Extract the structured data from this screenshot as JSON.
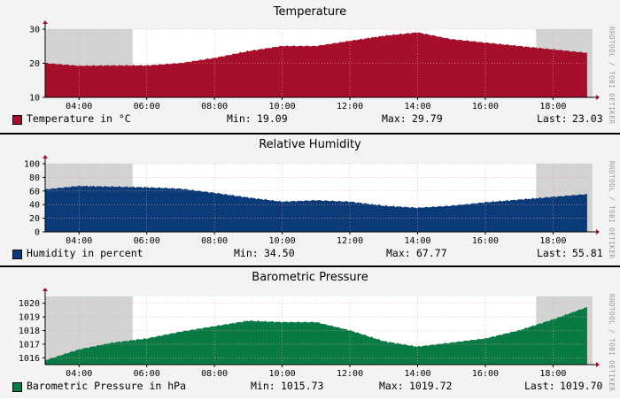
{
  "watermark": "RRDTOOL / TOBI OETIKER",
  "chart_data": [
    {
      "type": "area",
      "title": "Temperature",
      "x_ticks": [
        "04:00",
        "06:00",
        "08:00",
        "10:00",
        "12:00",
        "14:00",
        "16:00",
        "18:00"
      ],
      "x_range": [
        "03:00",
        "19:10"
      ],
      "ylim": [
        10,
        30
      ],
      "y_ticks": [
        10,
        20,
        30
      ],
      "grid": true,
      "shaded_periods": [
        [
          "03:00",
          "05:35"
        ],
        [
          "17:30",
          "19:10"
        ]
      ],
      "x": [
        "03:00",
        "04:00",
        "05:00",
        "06:00",
        "07:00",
        "08:00",
        "09:00",
        "10:00",
        "11:00",
        "12:00",
        "13:00",
        "14:00",
        "15:00",
        "16:00",
        "17:00",
        "18:00",
        "19:00"
      ],
      "values": [
        20.0,
        19.2,
        19.3,
        19.3,
        20.0,
        21.5,
        23.5,
        25.0,
        25.0,
        26.5,
        28.0,
        29.0,
        27.0,
        26.0,
        25.0,
        24.0,
        23.0
      ],
      "series_name": "Temperature in °C",
      "color": "#a50f2c",
      "min_label": "Min:",
      "min": "19.09",
      "max_label": "Max:",
      "max": "29.79",
      "last_label": "Last:",
      "last": "23.03"
    },
    {
      "type": "area",
      "title": "Relative Humidity",
      "x_ticks": [
        "04:00",
        "06:00",
        "08:00",
        "10:00",
        "12:00",
        "14:00",
        "16:00",
        "18:00"
      ],
      "x_range": [
        "03:00",
        "19:10"
      ],
      "ylim": [
        0,
        100
      ],
      "y_ticks": [
        0,
        20,
        40,
        60,
        80,
        100
      ],
      "grid": true,
      "shaded_periods": [
        [
          "03:00",
          "05:35"
        ],
        [
          "17:30",
          "19:10"
        ]
      ],
      "x": [
        "03:00",
        "04:00",
        "05:00",
        "06:00",
        "07:00",
        "08:00",
        "09:00",
        "10:00",
        "11:00",
        "12:00",
        "13:00",
        "14:00",
        "15:00",
        "16:00",
        "17:00",
        "18:00",
        "19:00"
      ],
      "values": [
        62,
        67,
        66,
        65,
        63,
        57,
        50,
        44,
        46,
        44,
        38,
        35,
        38,
        43,
        47,
        51,
        55
      ],
      "series_name": "Humidity in percent",
      "color": "#0a3a78",
      "min_label": "Min:",
      "min": "34.50",
      "max_label": "Max:",
      "max": "67.77",
      "last_label": "Last:",
      "last": "55.81"
    },
    {
      "type": "area",
      "title": "Barometric Pressure",
      "x_ticks": [
        "04:00",
        "06:00",
        "08:00",
        "10:00",
        "12:00",
        "14:00",
        "16:00",
        "18:00"
      ],
      "x_range": [
        "03:00",
        "19:10"
      ],
      "ylim": [
        1015.5,
        1020.5
      ],
      "y_ticks": [
        1016,
        1017,
        1018,
        1019,
        1020
      ],
      "grid": true,
      "shaded_periods": [
        [
          "03:00",
          "05:35"
        ],
        [
          "17:30",
          "19:10"
        ]
      ],
      "x": [
        "03:00",
        "04:00",
        "05:00",
        "06:00",
        "07:00",
        "08:00",
        "09:00",
        "10:00",
        "11:00",
        "12:00",
        "13:00",
        "14:00",
        "15:00",
        "16:00",
        "17:00",
        "18:00",
        "19:00"
      ],
      "values": [
        1015.8,
        1016.6,
        1017.1,
        1017.4,
        1017.9,
        1018.3,
        1018.7,
        1018.6,
        1018.6,
        1018.0,
        1017.2,
        1016.8,
        1017.1,
        1017.4,
        1018.0,
        1018.8,
        1019.7
      ],
      "series_name": "Barometric Pressure in hPa",
      "color": "#0a7a45",
      "min_label": "Min:",
      "min": "1015.73",
      "max_label": "Max:",
      "max": "1019.72",
      "last_label": "Last:",
      "last": "1019.70"
    }
  ]
}
